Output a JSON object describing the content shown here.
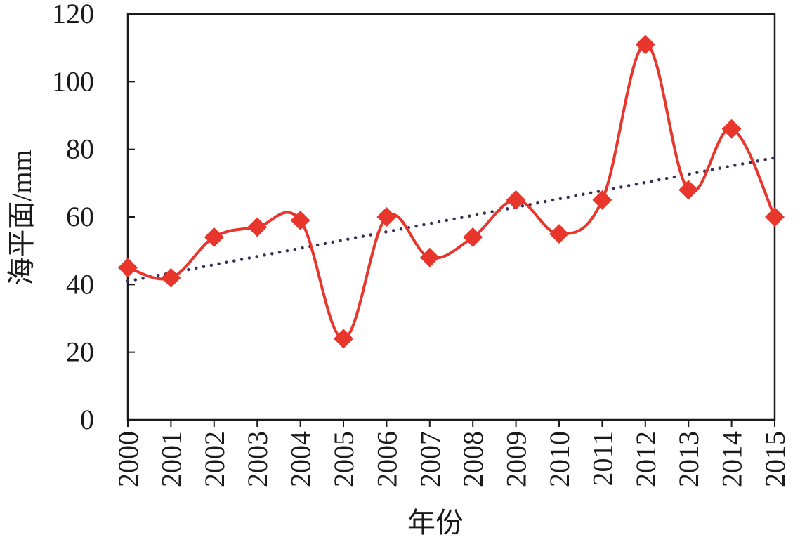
{
  "chart_data": {
    "type": "line",
    "title": "",
    "xlabel": "年份",
    "ylabel": "海平面/mm",
    "categories": [
      "2000",
      "2001",
      "2002",
      "2003",
      "2004",
      "2005",
      "2006",
      "2007",
      "2008",
      "2009",
      "2010",
      "2011",
      "2012",
      "2013",
      "2014",
      "2015"
    ],
    "series": [
      {
        "values": [
          45,
          42,
          54,
          57,
          59,
          24,
          60,
          48,
          54,
          65,
          55,
          65,
          111,
          68,
          86,
          60
        ],
        "color": "#e8362c",
        "marker": "diamond",
        "style": "smooth"
      }
    ],
    "trendline": {
      "type": "linear",
      "start": 41,
      "end": 77.5,
      "color": "#3b2f5a",
      "style": "dotted"
    },
    "ylim": [
      0,
      120
    ],
    "yticks": [
      0,
      20,
      40,
      60,
      80,
      100,
      120
    ],
    "grid": false,
    "legend": "none"
  }
}
